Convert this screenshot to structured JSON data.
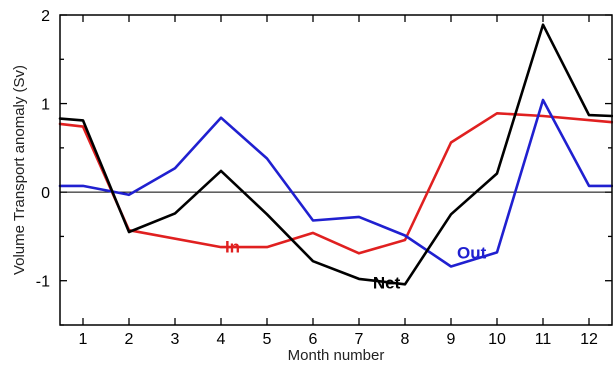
{
  "chart_data": {
    "type": "line",
    "xlabel": "Month number",
    "ylabel": "Volume Transport anomaly (Sv)",
    "xlim": [
      0.5,
      12.5
    ],
    "ylim": [
      -1.5,
      2
    ],
    "xticks": [
      "1",
      "2",
      "3",
      "4",
      "5",
      "6",
      "7",
      "8",
      "9",
      "10",
      "11",
      "12"
    ],
    "yticks": [
      "-1",
      "0",
      "1",
      "2"
    ],
    "zero_line": true,
    "grid": false,
    "series": [
      {
        "name": "In",
        "color": "#e02020",
        "x": [
          0.5,
          1,
          2,
          4,
          5,
          6,
          7,
          8,
          9,
          10,
          11,
          12.5
        ],
        "y": [
          0.77,
          0.74,
          -0.43,
          -0.62,
          -0.62,
          -0.46,
          -0.69,
          -0.54,
          0.56,
          0.89,
          0.86,
          0.79
        ]
      },
      {
        "name": "Out",
        "color": "#2020d0",
        "x": [
          0.5,
          1,
          2,
          3,
          4,
          5,
          6,
          7,
          8,
          9,
          10,
          11,
          12,
          12.5
        ],
        "y": [
          0.07,
          0.07,
          -0.03,
          0.27,
          0.84,
          0.38,
          -0.32,
          -0.28,
          -0.49,
          -0.84,
          -0.68,
          1.04,
          0.07,
          0.07
        ]
      },
      {
        "name": "Net",
        "color": "#000000",
        "x": [
          0.5,
          1,
          2,
          3,
          4,
          5,
          6,
          7,
          8,
          9,
          10,
          11,
          12,
          12.5
        ],
        "y": [
          0.83,
          0.81,
          -0.45,
          -0.24,
          0.24,
          -0.25,
          -0.78,
          -0.98,
          -1.04,
          -0.25,
          0.21,
          1.89,
          0.87,
          0.86
        ]
      }
    ],
    "annotations": [
      {
        "text": "In",
        "series": "In",
        "x": 4.25,
        "y": -0.63
      },
      {
        "text": "Net",
        "series": "Net",
        "x": 7.6,
        "y": -1.04
      },
      {
        "text": "Out",
        "series": "Out",
        "x": 9.45,
        "y": -0.7
      }
    ]
  }
}
